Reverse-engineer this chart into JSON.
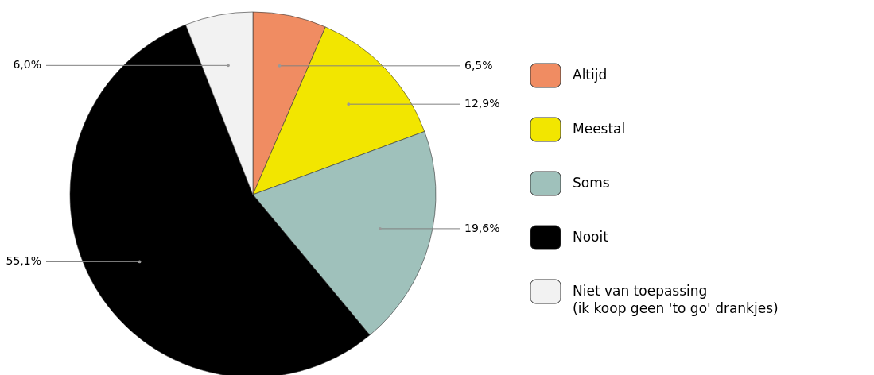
{
  "chart_data": {
    "type": "pie",
    "categories": [
      "Altijd",
      "Meestal",
      "Soms",
      "Nooit",
      "Niet van toepassing\n(ik koop geen 'to go' drankjes)"
    ],
    "values": [
      6.5,
      12.9,
      19.6,
      55.1,
      6.0
    ],
    "value_labels": [
      "6,5%",
      "12,9%",
      "19,6%",
      "55,1%",
      "6,0%"
    ],
    "colors": [
      "#f08c62",
      "#f2e600",
      "#9fc1bb",
      "#000000",
      "#f2f2f2"
    ],
    "legend": "right"
  }
}
